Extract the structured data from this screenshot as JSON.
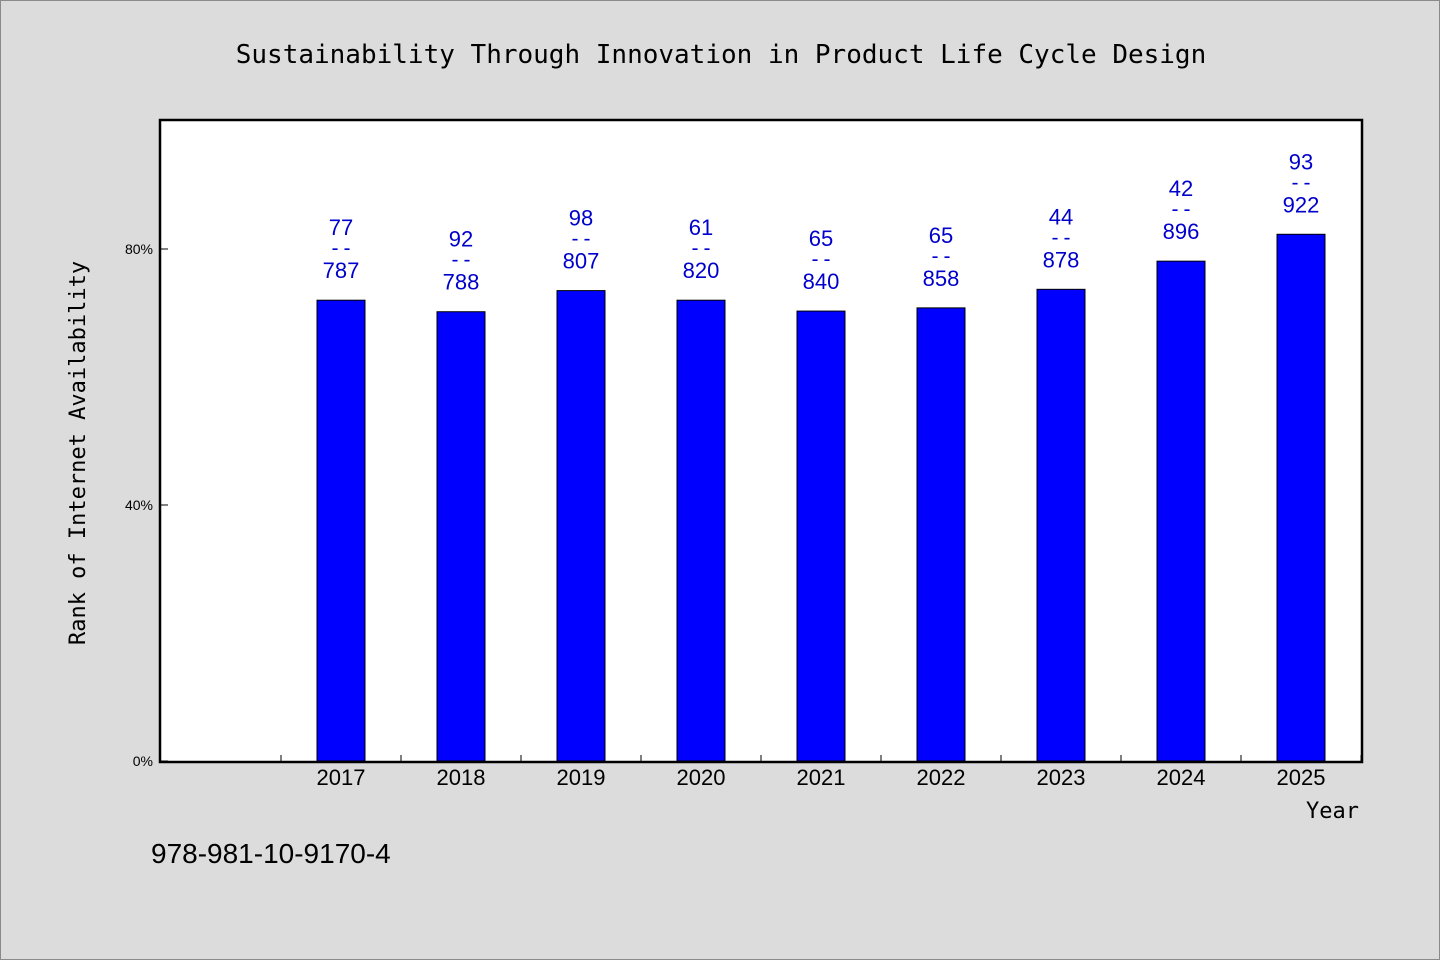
{
  "chart_data": {
    "type": "bar",
    "title": "Sustainability Through Innovation in Product Life Cycle Design",
    "xlabel": "Year",
    "ylabel": "Rank of Internet Availability",
    "categories": [
      "2017",
      "2018",
      "2019",
      "2020",
      "2021",
      "2022",
      "2023",
      "2024",
      "2025"
    ],
    "values": [
      72,
      70.2,
      73.5,
      72,
      70.3,
      70.8,
      73.7,
      78.1,
      82.3
    ],
    "label_top": [
      "77",
      "92",
      "98",
      "61",
      "65",
      "65",
      "44",
      "42",
      "93"
    ],
    "label_sep": "--",
    "label_bottom": [
      "787",
      "788",
      "807",
      "820",
      "840",
      "858",
      "878",
      "896",
      "922"
    ],
    "yticks": [
      {
        "value": 0,
        "label": "0%"
      },
      {
        "value": 40,
        "label": "40%"
      },
      {
        "value": 80,
        "label": "80%"
      }
    ],
    "ylim": [
      0,
      100
    ],
    "grid": false,
    "bar_color": "#0000ff",
    "label_color": "#0000cc",
    "background_color": "#dcdcdc",
    "plot_background": "#ffffff"
  },
  "footer": {
    "isbn": "978-981-10-9170-4"
  }
}
